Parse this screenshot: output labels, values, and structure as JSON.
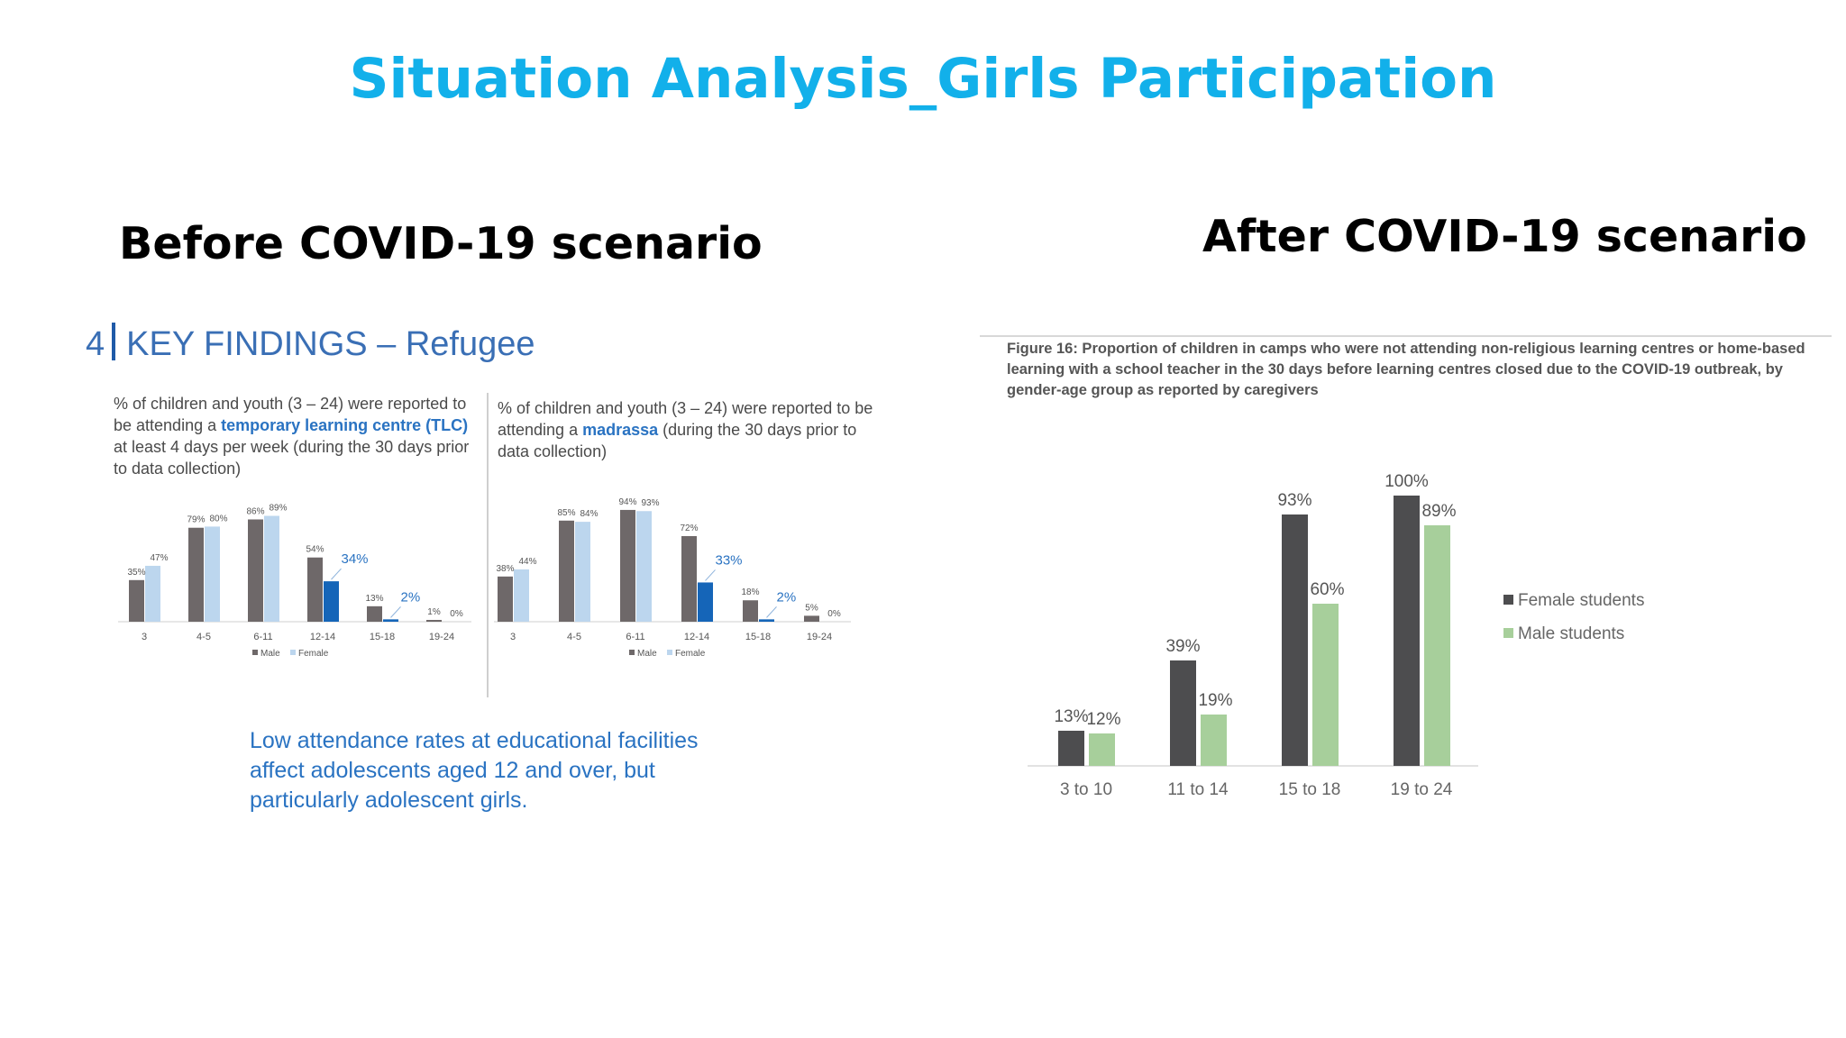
{
  "title": "Situation Analysis_Girls Participation",
  "before_heading": "Before COVID-19 scenario",
  "after_heading": "After COVID-19 scenario",
  "key_findings": {
    "number": "4",
    "title": "KEY FINDINGS – Refugee",
    "left_desc": {
      "part1": "% of children and youth (3 – 24) were reported to be attending a ",
      "highlight": "temporary learning centre (TLC)",
      "part2": " at least 4 days per week (during the 30 days prior to data collection)"
    },
    "right_desc": {
      "part1": "% of children and youth (3 – 24) were reported to be attending a ",
      "highlight": "madrassa",
      "part2": " (during the 30 days prior to data collection)"
    },
    "conclusion": "Low attendance rates at educational facilities affect adolescents aged 12 and over, but particularly adolescent girls."
  },
  "figure_caption": "Figure 16: Proportion of children in camps who were not attending non-religious learning centres or home-based learning with a school teacher in the 30 days before learning centres closed due to the COVID-19 outbreak, by gender-age group as reported by caregivers",
  "colors": {
    "title": "#12b0ea",
    "male_bar": "#6e6869",
    "female_bar": "#bcd6ee",
    "female_highlight": "#1565b8",
    "after_female": "#4d4d4f",
    "after_male": "#a7cf9b"
  },
  "chart_data": [
    {
      "type": "bar",
      "title": "",
      "categories": [
        "3",
        "4-5",
        "6-11",
        "12-14",
        "15-18",
        "19-24"
      ],
      "series": [
        {
          "name": "Male",
          "values": [
            35,
            79,
            86,
            54,
            13,
            1
          ]
        },
        {
          "name": "Female",
          "values": [
            47,
            80,
            89,
            34,
            2,
            0
          ]
        }
      ],
      "highlighted_points": [
        {
          "series": "Female",
          "categories": [
            "12-14",
            "15-18"
          ]
        }
      ],
      "ylim": [
        0,
        100
      ],
      "legend": "bottom",
      "grid": false
    },
    {
      "type": "bar",
      "title": "",
      "categories": [
        "3",
        "4-5",
        "6-11",
        "12-14",
        "15-18",
        "19-24"
      ],
      "series": [
        {
          "name": "Male",
          "values": [
            38,
            85,
            94,
            72,
            18,
            5
          ]
        },
        {
          "name": "Female",
          "values": [
            44,
            84,
            93,
            33,
            2,
            0
          ]
        }
      ],
      "highlighted_points": [
        {
          "series": "Female",
          "categories": [
            "12-14",
            "15-18"
          ]
        }
      ],
      "ylim": [
        0,
        100
      ],
      "legend": "bottom",
      "grid": false
    },
    {
      "type": "bar",
      "title": "",
      "categories": [
        "3 to 10",
        "11 to 14",
        "15 to 18",
        "19 to 24"
      ],
      "series": [
        {
          "name": "Female students",
          "values": [
            13,
            39,
            93,
            100
          ]
        },
        {
          "name": "Male students",
          "values": [
            12,
            19,
            60,
            89
          ]
        }
      ],
      "ylim": [
        0,
        100
      ],
      "legend": "right",
      "grid": false
    }
  ]
}
